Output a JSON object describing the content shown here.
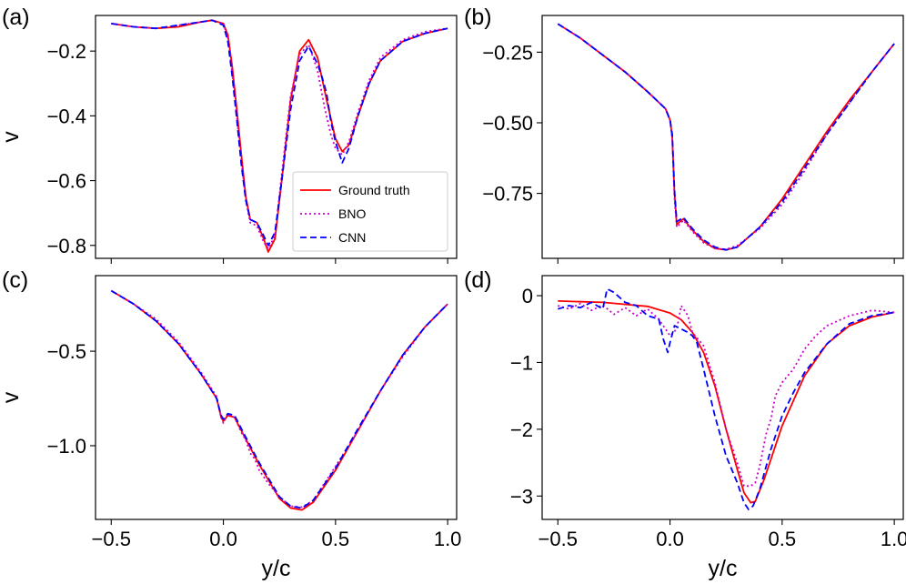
{
  "chart_data": [
    {
      "panel": "(a)",
      "type": "line",
      "xlabel": "",
      "ylabel": "v",
      "xlim": [
        -0.57,
        1.04
      ],
      "ylim": [
        -0.84,
        -0.09
      ],
      "xticks": [
        -0.5,
        0.0,
        0.5,
        1.0
      ],
      "xtick_labels": [
        "",
        "",
        "",
        ""
      ],
      "yticks": [
        -0.2,
        -0.4,
        -0.6,
        -0.8
      ],
      "ytick_labels": [
        "−0.2",
        "−0.4",
        "−0.6",
        "−0.8"
      ],
      "legend": {
        "position": "lower-right",
        "entries": [
          "Ground truth",
          "BNO",
          "CNN"
        ]
      },
      "series": [
        {
          "name": "Ground truth",
          "color": "#ff0000",
          "style": "solid",
          "x": [
            -0.5,
            -0.4,
            -0.3,
            -0.2,
            -0.1,
            -0.05,
            0.0,
            0.02,
            0.04,
            0.06,
            0.08,
            0.1,
            0.12,
            0.15,
            0.18,
            0.2,
            0.23,
            0.26,
            0.3,
            0.34,
            0.38,
            0.42,
            0.46,
            0.5,
            0.53,
            0.56,
            0.6,
            0.65,
            0.7,
            0.8,
            0.9,
            1.0
          ],
          "y": [
            -0.115,
            -0.125,
            -0.13,
            -0.125,
            -0.11,
            -0.105,
            -0.115,
            -0.15,
            -0.25,
            -0.38,
            -0.52,
            -0.65,
            -0.72,
            -0.73,
            -0.78,
            -0.82,
            -0.78,
            -0.6,
            -0.35,
            -0.2,
            -0.165,
            -0.22,
            -0.35,
            -0.47,
            -0.51,
            -0.49,
            -0.4,
            -0.3,
            -0.23,
            -0.17,
            -0.145,
            -0.13
          ]
        },
        {
          "name": "BNO",
          "color": "#cc00cc",
          "style": "dotted",
          "x": [
            -0.5,
            -0.4,
            -0.3,
            -0.2,
            -0.1,
            -0.05,
            0.0,
            0.02,
            0.04,
            0.06,
            0.08,
            0.1,
            0.12,
            0.15,
            0.18,
            0.2,
            0.23,
            0.26,
            0.3,
            0.34,
            0.38,
            0.42,
            0.45,
            0.48,
            0.5,
            0.53,
            0.56,
            0.6,
            0.65,
            0.7,
            0.8,
            0.9,
            1.0
          ],
          "y": [
            -0.115,
            -0.125,
            -0.13,
            -0.12,
            -0.11,
            -0.105,
            -0.115,
            -0.16,
            -0.27,
            -0.4,
            -0.54,
            -0.66,
            -0.73,
            -0.74,
            -0.79,
            -0.81,
            -0.77,
            -0.58,
            -0.34,
            -0.21,
            -0.18,
            -0.26,
            -0.37,
            -0.46,
            -0.5,
            -0.52,
            -0.48,
            -0.39,
            -0.29,
            -0.22,
            -0.165,
            -0.14,
            -0.13
          ]
        },
        {
          "name": "CNN",
          "color": "#0000ff",
          "style": "dashed",
          "x": [
            -0.5,
            -0.4,
            -0.3,
            -0.2,
            -0.1,
            -0.05,
            0.0,
            0.02,
            0.04,
            0.06,
            0.08,
            0.1,
            0.12,
            0.15,
            0.18,
            0.2,
            0.23,
            0.26,
            0.3,
            0.34,
            0.38,
            0.42,
            0.44,
            0.46,
            0.48,
            0.5,
            0.53,
            0.56,
            0.6,
            0.65,
            0.7,
            0.8,
            0.9,
            1.0
          ],
          "y": [
            -0.115,
            -0.125,
            -0.13,
            -0.12,
            -0.11,
            -0.105,
            -0.12,
            -0.17,
            -0.28,
            -0.41,
            -0.55,
            -0.66,
            -0.72,
            -0.73,
            -0.77,
            -0.8,
            -0.76,
            -0.6,
            -0.38,
            -0.23,
            -0.185,
            -0.24,
            -0.28,
            -0.33,
            -0.42,
            -0.48,
            -0.545,
            -0.5,
            -0.4,
            -0.3,
            -0.23,
            -0.17,
            -0.145,
            -0.13
          ]
        }
      ]
    },
    {
      "panel": "(b)",
      "type": "line",
      "xlabel": "",
      "ylabel": "",
      "xlim": [
        -0.57,
        1.04
      ],
      "ylim": [
        -0.98,
        -0.12
      ],
      "xticks": [
        -0.5,
        0.0,
        0.5,
        1.0
      ],
      "xtick_labels": [
        "",
        "",
        "",
        ""
      ],
      "yticks": [
        -0.25,
        -0.5,
        -0.75
      ],
      "ytick_labels": [
        "−0.25",
        "−0.50",
        "−0.75"
      ],
      "series": [
        {
          "name": "Ground truth",
          "color": "#ff0000",
          "style": "solid",
          "x": [
            -0.5,
            -0.4,
            -0.3,
            -0.2,
            -0.1,
            -0.02,
            0.0,
            0.01,
            0.02,
            0.03,
            0.06,
            0.1,
            0.15,
            0.2,
            0.25,
            0.3,
            0.4,
            0.5,
            0.6,
            0.7,
            0.8,
            0.9,
            1.0
          ],
          "y": [
            -0.15,
            -0.2,
            -0.26,
            -0.32,
            -0.39,
            -0.45,
            -0.49,
            -0.55,
            -0.75,
            -0.86,
            -0.84,
            -0.88,
            -0.92,
            -0.945,
            -0.95,
            -0.94,
            -0.87,
            -0.77,
            -0.65,
            -0.53,
            -0.42,
            -0.32,
            -0.22
          ]
        },
        {
          "name": "BNO",
          "color": "#cc00cc",
          "style": "dotted",
          "x": [
            -0.5,
            -0.4,
            -0.3,
            -0.2,
            -0.1,
            -0.02,
            0.0,
            0.01,
            0.02,
            0.03,
            0.06,
            0.1,
            0.15,
            0.2,
            0.25,
            0.3,
            0.4,
            0.5,
            0.6,
            0.7,
            0.8,
            0.9,
            1.0
          ],
          "y": [
            -0.15,
            -0.2,
            -0.26,
            -0.32,
            -0.39,
            -0.45,
            -0.49,
            -0.56,
            -0.77,
            -0.87,
            -0.845,
            -0.885,
            -0.925,
            -0.945,
            -0.948,
            -0.935,
            -0.875,
            -0.79,
            -0.67,
            -0.54,
            -0.43,
            -0.32,
            -0.22
          ]
        },
        {
          "name": "CNN",
          "color": "#0000ff",
          "style": "dashed",
          "x": [
            -0.5,
            -0.4,
            -0.3,
            -0.2,
            -0.1,
            -0.02,
            0.0,
            0.01,
            0.02,
            0.03,
            0.06,
            0.1,
            0.15,
            0.2,
            0.25,
            0.3,
            0.4,
            0.5,
            0.6,
            0.7,
            0.8,
            0.9,
            1.0
          ],
          "y": [
            -0.15,
            -0.2,
            -0.26,
            -0.32,
            -0.39,
            -0.45,
            -0.49,
            -0.54,
            -0.74,
            -0.85,
            -0.835,
            -0.875,
            -0.915,
            -0.94,
            -0.95,
            -0.94,
            -0.87,
            -0.78,
            -0.66,
            -0.54,
            -0.43,
            -0.32,
            -0.22
          ]
        }
      ]
    },
    {
      "panel": "(c)",
      "type": "line",
      "xlabel": "y/c",
      "ylabel": "v",
      "xlim": [
        -0.57,
        1.04
      ],
      "ylim": [
        -1.39,
        -0.1
      ],
      "xticks": [
        -0.5,
        0.0,
        0.5,
        1.0
      ],
      "xtick_labels": [
        "−0.5",
        "0.0",
        "0.5",
        "1.0"
      ],
      "yticks": [
        -0.5,
        -1.0
      ],
      "ytick_labels": [
        "−0.5",
        "−1.0"
      ],
      "series": [
        {
          "name": "Ground truth",
          "color": "#ff0000",
          "style": "solid",
          "x": [
            -0.5,
            -0.4,
            -0.3,
            -0.2,
            -0.1,
            -0.03,
            -0.01,
            0.0,
            0.02,
            0.05,
            0.08,
            0.12,
            0.16,
            0.2,
            0.25,
            0.3,
            0.35,
            0.4,
            0.5,
            0.6,
            0.7,
            0.8,
            0.9,
            1.0
          ],
          "y": [
            -0.18,
            -0.25,
            -0.34,
            -0.46,
            -0.62,
            -0.75,
            -0.85,
            -0.87,
            -0.84,
            -0.85,
            -0.92,
            -1.01,
            -1.1,
            -1.18,
            -1.28,
            -1.33,
            -1.34,
            -1.3,
            -1.13,
            -0.92,
            -0.71,
            -0.52,
            -0.37,
            -0.25
          ]
        },
        {
          "name": "BNO",
          "color": "#cc00cc",
          "style": "dotted",
          "x": [
            -0.5,
            -0.4,
            -0.3,
            -0.2,
            -0.1,
            -0.03,
            -0.01,
            0.0,
            0.02,
            0.05,
            0.08,
            0.1,
            0.12,
            0.14,
            0.16,
            0.2,
            0.25,
            0.3,
            0.35,
            0.4,
            0.5,
            0.6,
            0.7,
            0.8,
            0.9,
            1.0
          ],
          "y": [
            -0.18,
            -0.25,
            -0.33,
            -0.45,
            -0.61,
            -0.74,
            -0.85,
            -0.88,
            -0.83,
            -0.85,
            -0.93,
            -0.97,
            -1.04,
            -1.07,
            -1.13,
            -1.2,
            -1.27,
            -1.32,
            -1.325,
            -1.29,
            -1.11,
            -0.92,
            -0.71,
            -0.53,
            -0.37,
            -0.25
          ]
        },
        {
          "name": "CNN",
          "color": "#0000ff",
          "style": "dashed",
          "x": [
            -0.5,
            -0.4,
            -0.3,
            -0.2,
            -0.1,
            -0.03,
            -0.01,
            0.0,
            0.02,
            0.05,
            0.08,
            0.12,
            0.16,
            0.2,
            0.25,
            0.3,
            0.35,
            0.4,
            0.5,
            0.6,
            0.7,
            0.8,
            0.9,
            1.0
          ],
          "y": [
            -0.18,
            -0.25,
            -0.34,
            -0.46,
            -0.62,
            -0.75,
            -0.84,
            -0.86,
            -0.83,
            -0.84,
            -0.91,
            -1.0,
            -1.09,
            -1.17,
            -1.27,
            -1.32,
            -1.33,
            -1.29,
            -1.12,
            -0.91,
            -0.71,
            -0.52,
            -0.37,
            -0.25
          ]
        }
      ]
    },
    {
      "panel": "(d)",
      "type": "line",
      "xlabel": "y/c",
      "ylabel": "",
      "xlim": [
        -0.57,
        1.04
      ],
      "ylim": [
        -3.35,
        0.3
      ],
      "xticks": [
        -0.5,
        0.0,
        0.5,
        1.0
      ],
      "xtick_labels": [
        "−0.5",
        "0.0",
        "0.5",
        "1.0"
      ],
      "yticks": [
        0,
        -1,
        -2,
        -3
      ],
      "ytick_labels": [
        "0",
        "−1",
        "−2",
        "−3"
      ],
      "series": [
        {
          "name": "Ground truth",
          "color": "#ff0000",
          "style": "solid",
          "x": [
            -0.5,
            -0.3,
            -0.1,
            0.0,
            0.05,
            0.1,
            0.15,
            0.2,
            0.25,
            0.3,
            0.33,
            0.36,
            0.38,
            0.42,
            0.5,
            0.6,
            0.7,
            0.8,
            0.9,
            1.0
          ],
          "y": [
            -0.08,
            -0.1,
            -0.16,
            -0.26,
            -0.36,
            -0.55,
            -0.85,
            -1.35,
            -2.0,
            -2.6,
            -2.95,
            -3.1,
            -3.08,
            -2.75,
            -1.95,
            -1.2,
            -0.72,
            -0.45,
            -0.32,
            -0.25
          ]
        },
        {
          "name": "BNO",
          "color": "#cc00cc",
          "style": "dotted",
          "x": [
            -0.5,
            -0.45,
            -0.4,
            -0.35,
            -0.3,
            -0.25,
            -0.2,
            -0.15,
            -0.1,
            -0.05,
            0.0,
            0.03,
            0.05,
            0.08,
            0.1,
            0.15,
            0.2,
            0.25,
            0.3,
            0.33,
            0.36,
            0.38,
            0.4,
            0.43,
            0.45,
            0.47,
            0.5,
            0.55,
            0.6,
            0.65,
            0.7,
            0.8,
            0.9,
            1.0
          ],
          "y": [
            -0.15,
            -0.2,
            -0.12,
            -0.22,
            -0.14,
            -0.28,
            -0.18,
            -0.3,
            -0.2,
            -0.35,
            -0.6,
            -0.5,
            -0.15,
            -0.3,
            -0.55,
            -0.75,
            -1.3,
            -2.0,
            -2.5,
            -2.85,
            -2.85,
            -2.8,
            -2.55,
            -2.05,
            -1.85,
            -1.5,
            -1.3,
            -1.1,
            -0.8,
            -0.6,
            -0.45,
            -0.3,
            -0.22,
            -0.25
          ]
        },
        {
          "name": "CNN",
          "color": "#0000ff",
          "style": "dashed",
          "x": [
            -0.5,
            -0.45,
            -0.4,
            -0.35,
            -0.3,
            -0.28,
            -0.25,
            -0.2,
            -0.15,
            -0.1,
            -0.05,
            -0.03,
            -0.01,
            0.0,
            0.02,
            0.05,
            0.08,
            0.1,
            0.12,
            0.15,
            0.2,
            0.25,
            0.3,
            0.33,
            0.35,
            0.37,
            0.4,
            0.45,
            0.5,
            0.55,
            0.6,
            0.7,
            0.8,
            0.9,
            1.0
          ],
          "y": [
            -0.2,
            -0.15,
            -0.18,
            -0.1,
            -0.2,
            0.1,
            0.05,
            -0.1,
            -0.15,
            -0.3,
            -0.35,
            -0.65,
            -0.85,
            -0.7,
            -0.45,
            -0.5,
            -0.55,
            -0.6,
            -0.7,
            -1.1,
            -1.8,
            -2.4,
            -2.8,
            -3.1,
            -3.2,
            -3.15,
            -2.9,
            -2.3,
            -1.8,
            -1.45,
            -1.15,
            -0.72,
            -0.42,
            -0.3,
            -0.25
          ]
        }
      ]
    }
  ]
}
